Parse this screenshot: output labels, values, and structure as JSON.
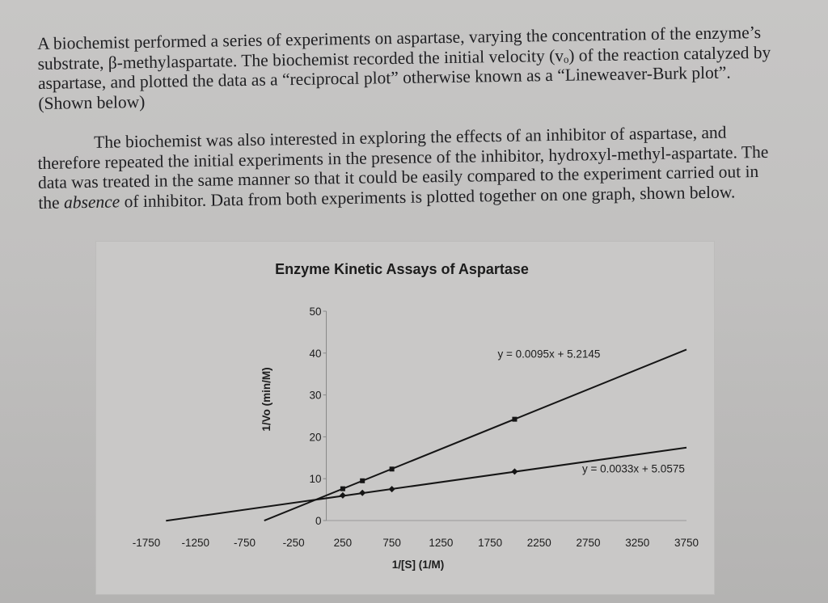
{
  "text": {
    "p1": "A biochemist performed a series of experiments on aspartase, varying the concentration of the enzyme’s substrate, β-methylaspartate. The biochemist recorded the initial velocity (vₒ) of the reaction catalyzed by aspartase, and plotted the data as a “reciprocal plot” otherwise known as a “Lineweaver-Burk plot”. (Shown below)",
    "p2_a": "The biochemist was also interested in exploring the effects of an inhibitor of aspartase, and therefore repeated the initial experiments in the presence of the inhibitor, hydroxyl-methyl-aspartate. The data was treated in the same manner so that it could be easily compared to the experiment carried out in the ",
    "p2_em": "absence",
    "p2_b": " of inhibitor. Data from both experiments is plotted together on one graph, shown below."
  },
  "chart_data": {
    "type": "scatter",
    "title": "Enzyme Kinetic Assays of Aspartase",
    "xlabel": "1/[S] (1/M)",
    "ylabel": "1/Vo (min/M)",
    "xlim": [
      -1750,
      3750
    ],
    "ylim": [
      0,
      50
    ],
    "xticks": [
      -1750,
      -1250,
      -750,
      -250,
      250,
      750,
      1250,
      1750,
      2250,
      2750,
      3250,
      3750
    ],
    "yticks": [
      0,
      10,
      20,
      30,
      40,
      50
    ],
    "grid": false,
    "series": [
      {
        "marker": "square",
        "equation": "y = 0.0095x + 5.2145",
        "slope": 0.0095,
        "intercept": 5.2145,
        "line_x": [
          -550,
          3750
        ],
        "points": [
          {
            "x": 250,
            "y": 7.6
          },
          {
            "x": 450,
            "y": 9.5
          },
          {
            "x": 750,
            "y": 12.3
          },
          {
            "x": 2000,
            "y": 24.2
          }
        ]
      },
      {
        "marker": "diamond",
        "equation": "y = 0.0033x + 5.0575",
        "slope": 0.0033,
        "intercept": 5.0575,
        "line_x": [
          -1550,
          3750
        ],
        "points": [
          {
            "x": 250,
            "y": 6.0
          },
          {
            "x": 450,
            "y": 6.6
          },
          {
            "x": 750,
            "y": 7.5
          },
          {
            "x": 2000,
            "y": 11.7
          }
        ]
      }
    ]
  }
}
